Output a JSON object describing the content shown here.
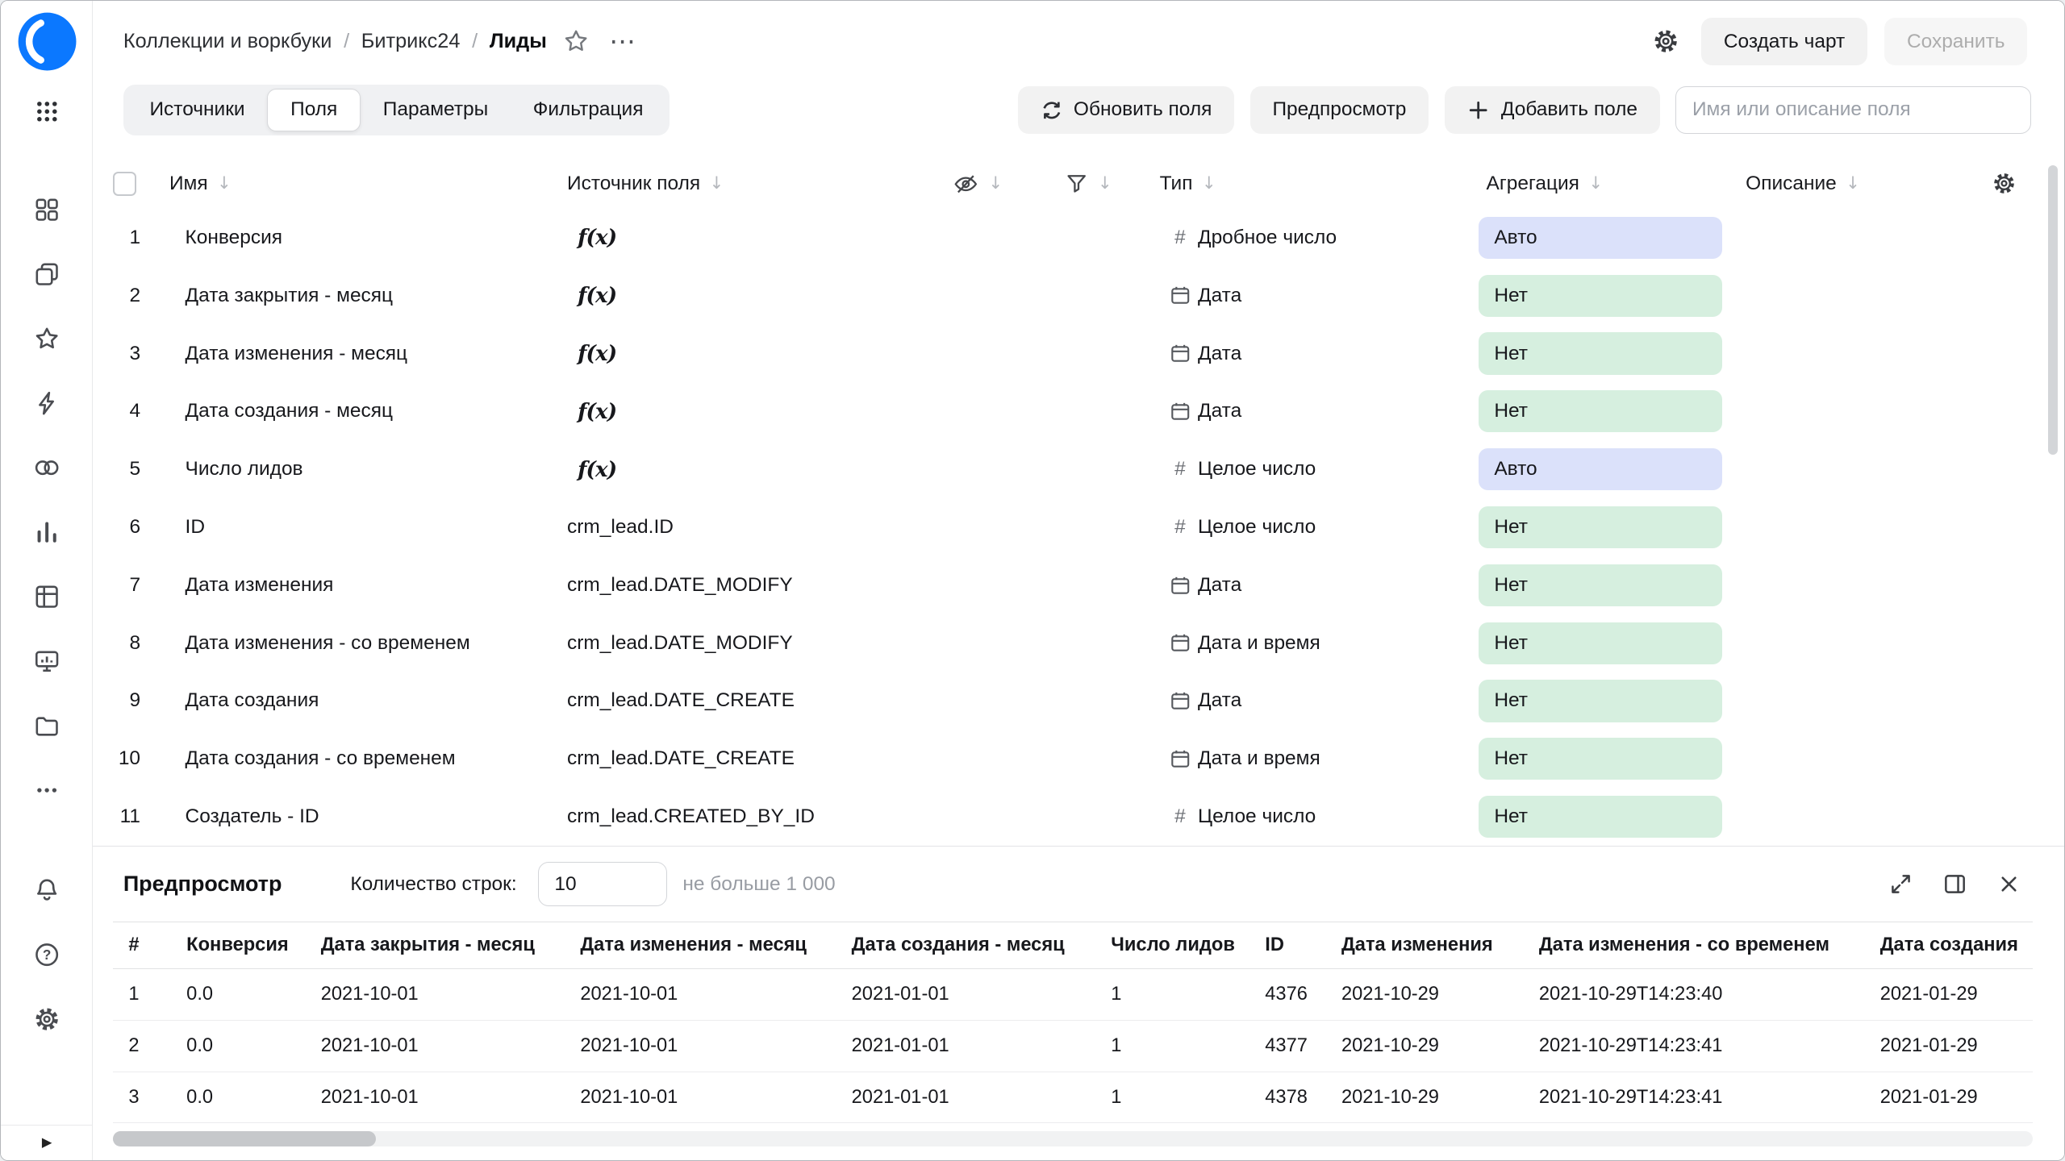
{
  "breadcrumb": {
    "separator": "/",
    "items": [
      "Коллекции и воркбуки",
      "Битрикс24",
      "Лиды"
    ]
  },
  "header_actions": {
    "create_chart": "Создать чарт",
    "save": "Сохранить"
  },
  "toolbar": {
    "tabs": [
      {
        "label": "Источники",
        "active": false
      },
      {
        "label": "Поля",
        "active": true
      },
      {
        "label": "Параметры",
        "active": false
      },
      {
        "label": "Фильтрация",
        "active": false
      }
    ],
    "refresh_fields": "Обновить поля",
    "preview": "Предпросмотр",
    "add_field": "Добавить поле",
    "search_placeholder": "Имя или описание поля"
  },
  "fields_table": {
    "columns": {
      "name": "Имя",
      "source": "Источник поля",
      "type": "Тип",
      "aggregation": "Агрегация",
      "description": "Описание"
    },
    "rows": [
      {
        "num": "1",
        "name": "Конверсия",
        "source": "",
        "formula": true,
        "type": "Дробное число",
        "type_kind": "number",
        "aggregation": "Авто",
        "agg_kind": "auto"
      },
      {
        "num": "2",
        "name": "Дата закрытия - месяц",
        "source": "",
        "formula": true,
        "type": "Дата",
        "type_kind": "date",
        "aggregation": "Нет",
        "agg_kind": "none"
      },
      {
        "num": "3",
        "name": "Дата изменения - месяц",
        "source": "",
        "formula": true,
        "type": "Дата",
        "type_kind": "date",
        "aggregation": "Нет",
        "agg_kind": "none"
      },
      {
        "num": "4",
        "name": "Дата создания - месяц",
        "source": "",
        "formula": true,
        "type": "Дата",
        "type_kind": "date",
        "aggregation": "Нет",
        "agg_kind": "none"
      },
      {
        "num": "5",
        "name": "Число лидов",
        "source": "",
        "formula": true,
        "type": "Целое число",
        "type_kind": "number",
        "aggregation": "Авто",
        "agg_kind": "auto"
      },
      {
        "num": "6",
        "name": "ID",
        "source": "crm_lead.ID",
        "formula": false,
        "type": "Целое число",
        "type_kind": "number",
        "aggregation": "Нет",
        "agg_kind": "none"
      },
      {
        "num": "7",
        "name": "Дата изменения",
        "source": "crm_lead.DATE_MODIFY",
        "formula": false,
        "type": "Дата",
        "type_kind": "date",
        "aggregation": "Нет",
        "agg_kind": "none"
      },
      {
        "num": "8",
        "name": "Дата изменения - со временем",
        "source": "crm_lead.DATE_MODIFY",
        "formula": false,
        "type": "Дата и время",
        "type_kind": "datetime",
        "aggregation": "Нет",
        "agg_kind": "none"
      },
      {
        "num": "9",
        "name": "Дата создания",
        "source": "crm_lead.DATE_CREATE",
        "formula": false,
        "type": "Дата",
        "type_kind": "date",
        "aggregation": "Нет",
        "agg_kind": "none"
      },
      {
        "num": "10",
        "name": "Дата создания - со временем",
        "source": "crm_lead.DATE_CREATE",
        "formula": false,
        "type": "Дата и время",
        "type_kind": "datetime",
        "aggregation": "Нет",
        "agg_kind": "none"
      },
      {
        "num": "11",
        "name": "Создатель - ID",
        "source": "crm_lead.CREATED_BY_ID",
        "formula": false,
        "type": "Целое число",
        "type_kind": "number",
        "aggregation": "Нет",
        "agg_kind": "none"
      }
    ]
  },
  "preview_panel": {
    "title": "Предпросмотр",
    "row_count_label": "Количество строк:",
    "row_count_value": "10",
    "row_count_hint": "не больше 1 000",
    "columns": [
      "#",
      "Конверсия",
      "Дата закрытия - месяц",
      "Дата изменения - месяц",
      "Дата создания - месяц",
      "Число лидов",
      "ID",
      "Дата изменения",
      "Дата изменения - со временем",
      "Дата создания"
    ],
    "rows": [
      [
        "1",
        "0.0",
        "2021-10-01",
        "2021-10-01",
        "2021-01-01",
        "1",
        "4376",
        "2021-10-29",
        "2021-10-29T14:23:40",
        "2021-01-29"
      ],
      [
        "2",
        "0.0",
        "2021-10-01",
        "2021-10-01",
        "2021-01-01",
        "1",
        "4377",
        "2021-10-29",
        "2021-10-29T14:23:41",
        "2021-01-29"
      ],
      [
        "3",
        "0.0",
        "2021-10-01",
        "2021-10-01",
        "2021-01-01",
        "1",
        "4378",
        "2021-10-29",
        "2021-10-29T14:23:41",
        "2021-01-29"
      ]
    ]
  },
  "icons": {
    "formula": "f(x)",
    "sort": "↓",
    "number_type": "#",
    "more": "⋯",
    "expand_arrow": "▶"
  },
  "colors": {
    "accent": "#0b78ff",
    "badge_auto_bg": "#dbe1fa",
    "badge_none_bg": "#d6efdf"
  },
  "sidebar": {
    "nav_icons": [
      "collections",
      "workbooks",
      "favorites",
      "editor",
      "connections",
      "charts",
      "datasets",
      "dashboards",
      "storage",
      "more"
    ],
    "footer_icons": [
      "notifications",
      "help",
      "settings"
    ]
  }
}
